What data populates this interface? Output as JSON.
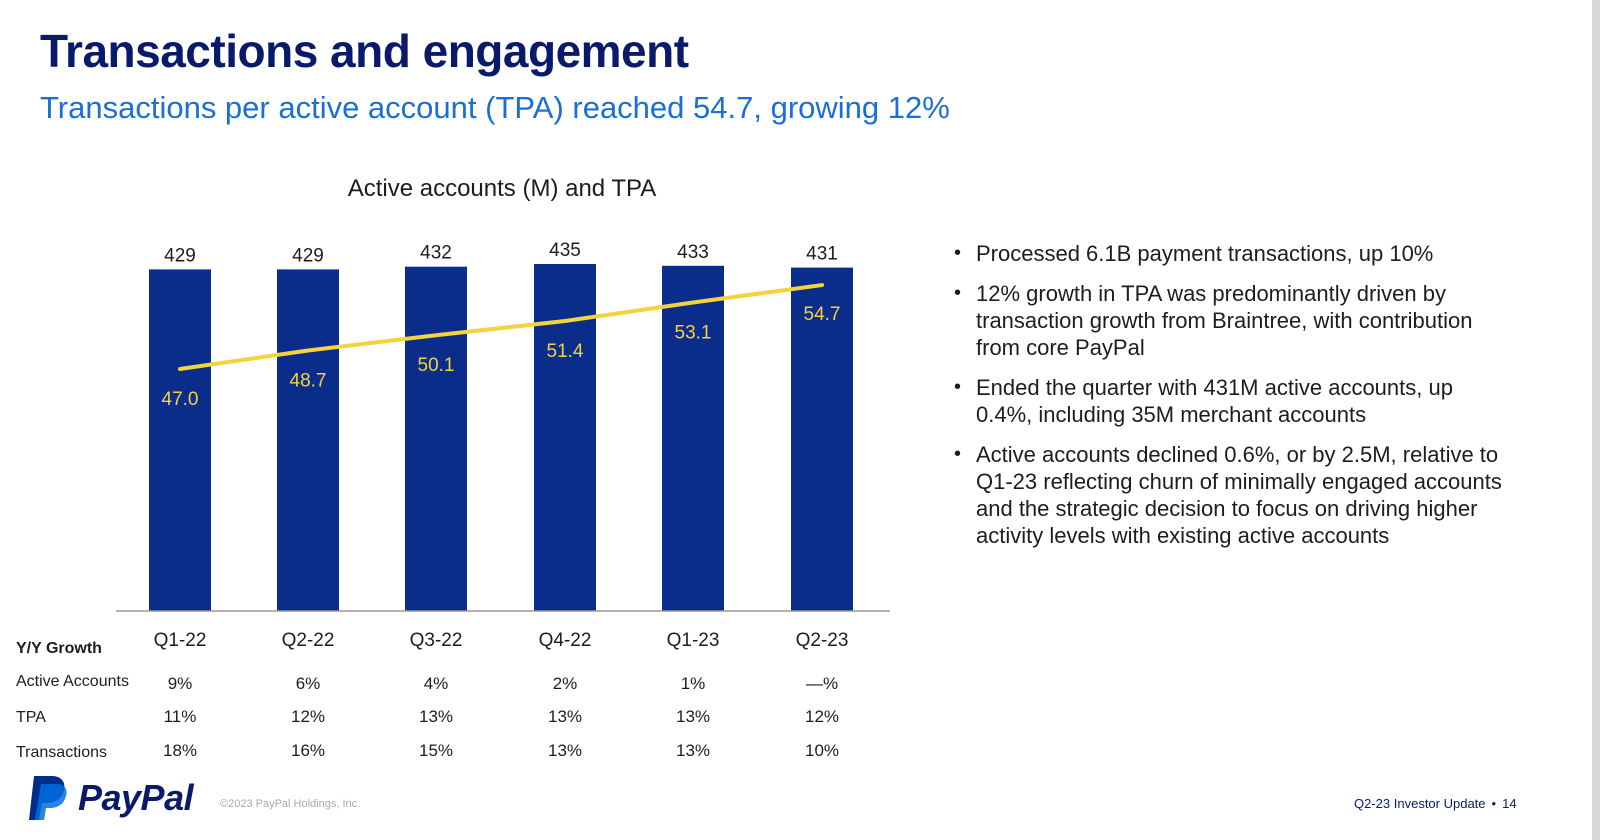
{
  "page": {
    "title": "Transactions and engagement",
    "subtitle": "Transactions per active account (TPA) reached 54.7, growing 12%"
  },
  "chart_data": {
    "type": "bar",
    "title": "Active accounts (M) and TPA",
    "categories": [
      "Q1-22",
      "Q2-22",
      "Q3-22",
      "Q4-22",
      "Q1-23",
      "Q2-23"
    ],
    "series": [
      {
        "name": "Active accounts (M)",
        "kind": "bar",
        "values": [
          429,
          429,
          432,
          435,
          433,
          431
        ],
        "labels": [
          "429",
          "429",
          "432",
          "435",
          "433",
          "431"
        ]
      },
      {
        "name": "TPA",
        "kind": "line",
        "values": [
          47.0,
          48.7,
          50.1,
          51.4,
          53.1,
          54.7
        ],
        "labels": [
          "47.0",
          "48.7",
          "50.1",
          "51.4",
          "53.1",
          "54.7"
        ]
      }
    ],
    "xlabel": "",
    "ylabel": "",
    "grid": false,
    "colors": {
      "bar": "#0a2d8c",
      "line": "#f5d33c",
      "tpa_label": "#f5d33c",
      "bar_label": "#1d1d1d"
    }
  },
  "growth_table": {
    "header": "Y/Y Growth",
    "rows": [
      {
        "label": "Active Accounts",
        "values": [
          "9%",
          "6%",
          "4%",
          "2%",
          "1%",
          "—%"
        ]
      },
      {
        "label": "TPA",
        "values": [
          "11%",
          "12%",
          "13%",
          "13%",
          "13%",
          "12%"
        ]
      },
      {
        "label": "Transactions",
        "values": [
          "18%",
          "16%",
          "15%",
          "13%",
          "13%",
          "10%"
        ]
      }
    ]
  },
  "bullets": [
    "Processed 6.1B payment transactions, up 10%",
    "12% growth in TPA was predominantly driven by transaction growth from Braintree, with contribution from core PayPal",
    "Ended the quarter with 431M active accounts, up 0.4%, including 35M merchant accounts",
    "Active accounts declined 0.6%, or by 2.5M, relative to Q1-23 reflecting churn of minimally engaged accounts and the strategic decision to focus on driving higher activity levels with existing active accounts"
  ],
  "footer": {
    "brand": "PayPal",
    "copyright": "©2023 PayPal Holdings, Inc.",
    "document": "Q2-23 Investor Update",
    "separator": "•",
    "page_number": "14"
  },
  "colors": {
    "title": "#0a1a6b",
    "subtitle": "#1a6fd6",
    "brand_dark": "#002c8a",
    "brand_light": "#0070e0"
  }
}
